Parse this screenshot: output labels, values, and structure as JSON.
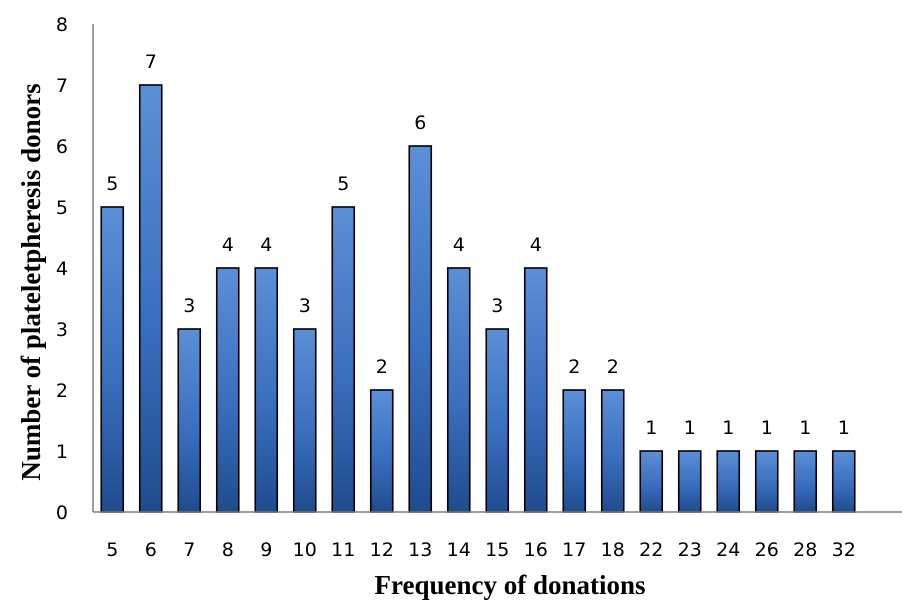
{
  "chart_data": {
    "type": "bar",
    "title": "",
    "xlabel": "Frequency of donations",
    "ylabel": "Number of plateletpheresis donors",
    "categories": [
      "5",
      "6",
      "7",
      "8",
      "9",
      "10",
      "11",
      "12",
      "13",
      "14",
      "15",
      "16",
      "17",
      "18",
      "22",
      "23",
      "24",
      "26",
      "28",
      "32"
    ],
    "values": [
      5,
      7,
      3,
      4,
      4,
      3,
      5,
      2,
      6,
      4,
      3,
      4,
      2,
      2,
      1,
      1,
      1,
      1,
      1,
      1
    ],
    "data_labels": [
      "5",
      "7",
      "3",
      "4",
      "4",
      "3",
      "5",
      "2",
      "6",
      "4",
      "3",
      "4",
      "2",
      "2",
      "1",
      "1",
      "1",
      "1",
      "1",
      "1"
    ],
    "ylim": [
      0,
      8
    ],
    "yticks": [
      "0",
      "1",
      "2",
      "3",
      "4",
      "5",
      "6",
      "7",
      "8"
    ],
    "grid": false,
    "legend": "none",
    "colors": {
      "bar_light": "#5b8fd6",
      "bar_mid": "#3a6fbf",
      "bar_dark": "#1f4c8f",
      "bar_border": "#000000",
      "axis": "#7f7f7f"
    }
  }
}
